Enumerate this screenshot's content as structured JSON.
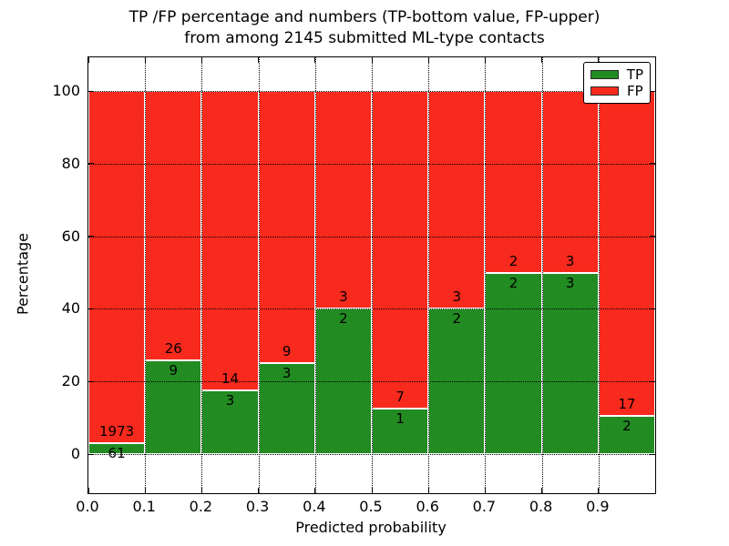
{
  "header": {
    "title_lines": [
      "TP /FP percentage and numbers (TP-bottom value, FP-upper)",
      "from among 2145 submitted ML-type contacts"
    ]
  },
  "chart_data": {
    "type": "bar",
    "subtype": "stacked-percentage",
    "title": "TP /FP percentage and numbers (TP-bottom value, FP-upper)\nfrom among 2145 submitted ML-type contacts",
    "xlabel": "Predicted probability",
    "ylabel": "Percentage",
    "bin_edges": [
      0.0,
      0.1,
      0.2,
      0.3,
      0.4,
      0.5,
      0.6,
      0.7,
      0.8,
      0.9,
      1.0
    ],
    "series": [
      {
        "name": "TP",
        "color": "#228b22",
        "counts": [
          61,
          9,
          3,
          3,
          2,
          1,
          2,
          2,
          3,
          2
        ],
        "percent_heights": [
          3.0,
          25.71,
          17.65,
          25.0,
          40.0,
          12.5,
          40.0,
          50.0,
          50.0,
          10.53
        ]
      },
      {
        "name": "FP",
        "color": "#f8291d",
        "counts": [
          1973,
          26,
          14,
          9,
          3,
          7,
          3,
          2,
          3,
          17
        ],
        "percent_heights": [
          97.0,
          74.29,
          82.35,
          75.0,
          60.0,
          87.5,
          60.0,
          50.0,
          50.0,
          89.47
        ]
      }
    ],
    "x_ticks": [
      "0.0",
      "0.1",
      "0.2",
      "0.3",
      "0.4",
      "0.5",
      "0.6",
      "0.7",
      "0.8",
      "0.9"
    ],
    "y_ticks": [
      0,
      20,
      40,
      60,
      80,
      100
    ],
    "xlim": [
      0.0,
      1.0
    ],
    "ylim": [
      -10.9,
      109.3
    ],
    "grid": "dotted",
    "legend": {
      "position": "upper right",
      "entries": [
        "TP",
        "FP"
      ]
    }
  }
}
